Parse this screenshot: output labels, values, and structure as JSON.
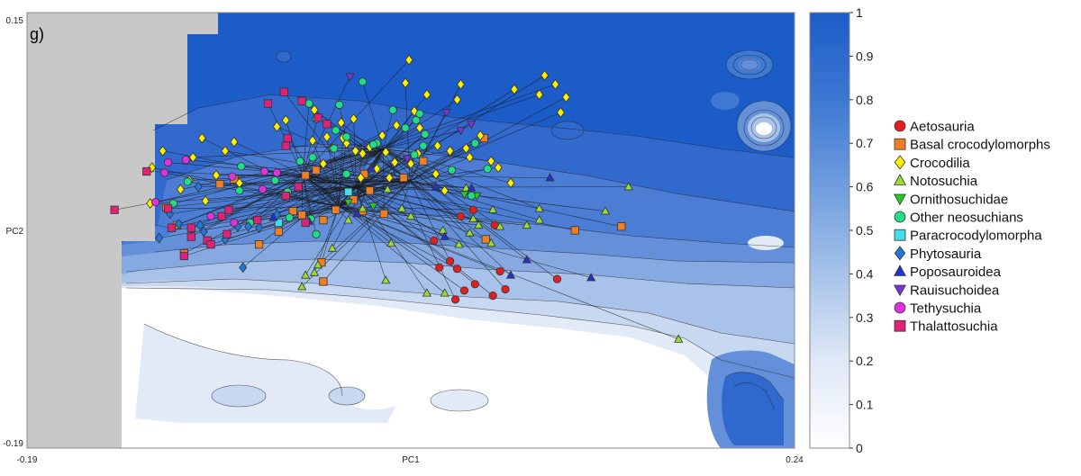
{
  "chart_data": {
    "type": "scatter",
    "panel_label": "g)",
    "xlabel": "PC1",
    "ylabel": "PC2",
    "xlim": [
      -0.19,
      0.24
    ],
    "ylim": [
      -0.19,
      0.15
    ],
    "x_tick_labels": [
      "-0.19",
      "PC1",
      "0.24"
    ],
    "y_tick_labels": [
      "0.15",
      "PC2",
      "-0.19"
    ],
    "colorbar": {
      "range": [
        0,
        1
      ],
      "ticks": [
        "0",
        "0.1",
        "0.2",
        "0.3",
        "0.4",
        "0.5",
        "0.6",
        "0.7",
        "0.8",
        "0.9",
        "1"
      ],
      "color_low": "#ffffff",
      "color_high": "#1c5cc8"
    },
    "background": {
      "masked_region_color": "#c8c8c8",
      "high_region_color": "#1c5cc8"
    },
    "legend_position": "right",
    "series": [
      {
        "name": "Aetosauria",
        "marker": "circle",
        "color": "#e02020",
        "points": [
          [
            0.061,
            -0.062
          ],
          [
            0.041,
            -0.049
          ],
          [
            0.047,
            -0.044
          ],
          [
            0.051,
            -0.05
          ],
          [
            0.05,
            -0.074
          ],
          [
            0.071,
            -0.071
          ],
          [
            0.055,
            -0.067
          ],
          [
            0.078,
            -0.066
          ],
          [
            0.075,
            -0.052
          ],
          [
            0.107,
            -0.058
          ],
          [
            0.038,
            -0.028
          ],
          [
            0.072,
            -0.016
          ],
          [
            0.053,
            -0.009
          ],
          [
            0.06,
            -0.004
          ]
        ]
      },
      {
        "name": "Basal crocodylomorphs",
        "marker": "square",
        "color": "#ee7f25",
        "points": [
          [
            -0.102,
            -0.038
          ],
          [
            -0.112,
            -0.002
          ],
          [
            -0.106,
            -0.016
          ],
          [
            -0.082,
            0.016
          ],
          [
            -0.074,
            0.02
          ],
          [
            -0.06,
            -0.031
          ],
          [
            -0.049,
            -0.021
          ],
          [
            -0.036,
            -0.008
          ],
          [
            -0.024,
            -0.012
          ],
          [
            -0.034,
            0.023
          ],
          [
            -0.028,
            0.027
          ],
          [
            -0.01,
            0.01
          ],
          [
            -0.017,
            -0.004
          ],
          [
            -0.002,
            -0.005
          ],
          [
            -0.001,
            0.024
          ],
          [
            0.01,
            -0.007
          ],
          [
            0.021,
            0.021
          ],
          [
            0.002,
            0.011
          ],
          [
            -0.024,
            -0.06
          ],
          [
            -0.025,
            -0.045
          ],
          [
            -0.041,
            -0.005
          ],
          [
            0.067,
            -0.027
          ],
          [
            0.117,
            -0.02
          ],
          [
            0.143,
            -0.017
          ],
          [
            0.066,
            0.052
          ],
          [
            -0.007,
            0.004
          ],
          [
            0.032,
            0.034
          ]
        ]
      },
      {
        "name": "Crocodilia",
        "marker": "diamond",
        "color": "#fff200",
        "points": [
          [
            0.024,
            0.113
          ],
          [
            0.053,
            0.094
          ],
          [
            0.1,
            0.101
          ],
          [
            0.097,
            0.086
          ],
          [
            0.083,
            0.09
          ],
          [
            0.106,
            0.094
          ],
          [
            0.112,
            0.084
          ],
          [
            0.109,
            0.072
          ],
          [
            0.051,
            0.082
          ],
          [
            0.027,
            0.073
          ],
          [
            0.017,
            0.062
          ],
          [
            0.022,
            0.095
          ],
          [
            0.034,
            0.086
          ],
          [
            0.03,
            0.06
          ],
          [
            -0.007,
            0.067
          ],
          [
            -0.045,
            0.066
          ],
          [
            -0.05,
            0.061
          ],
          [
            -0.03,
            0.05
          ],
          [
            -0.019,
            0.044
          ],
          [
            -0.024,
            0.032
          ],
          [
            -0.074,
            0.049
          ],
          [
            -0.079,
            0.042
          ],
          [
            -0.092,
            0.052
          ],
          [
            -0.097,
            0.037
          ],
          [
            -0.114,
            0.042
          ],
          [
            -0.099,
            0.019
          ],
          [
            -0.09,
            0.003
          ],
          [
            -0.12,
            0.029
          ],
          [
            -0.104,
            0.012
          ],
          [
            -0.121,
            0.001
          ],
          [
            -0.084,
            0.023
          ],
          [
            -0.071,
            0.017
          ],
          [
            -0.022,
            0.053
          ],
          [
            -0.011,
            0.048
          ],
          [
            -0.002,
            0.04
          ],
          [
            0.009,
            0.054
          ],
          [
            0.006,
            0.028
          ],
          [
            0.013,
            0.021
          ],
          [
            0.029,
            0.04
          ],
          [
            0.04,
            0.046
          ],
          [
            0.047,
            0.042
          ],
          [
            0.064,
            0.054
          ],
          [
            0.056,
            0.044
          ],
          [
            0.039,
            0.024
          ],
          [
            0.016,
            0.033
          ],
          [
            -0.006,
            0.042
          ],
          [
            -0.014,
            0.064
          ],
          [
            0.025,
            0.032
          ],
          [
            -0.003,
            0.021
          ],
          [
            0.044,
            0.011
          ],
          [
            0.002,
            0.045
          ],
          [
            0.058,
            0.037
          ],
          [
            0.033,
            0.055
          ],
          [
            0.07,
            0.034
          ],
          [
            0.074,
            0.029
          ],
          [
            0.011,
            0.041
          ],
          [
            -0.029,
            0.074
          ],
          [
            -0.013,
            0.052
          ],
          [
            0.081,
            0.017
          ]
        ]
      },
      {
        "name": "Notosuchia",
        "marker": "triangle",
        "color": "#99dd33",
        "points": [
          [
            0.147,
            0.014
          ],
          [
            0.134,
            -0.005
          ],
          [
            0.097,
            -0.012
          ],
          [
            0.063,
            -0.016
          ],
          [
            0.058,
            -0.022
          ],
          [
            0.052,
            -0.031
          ],
          [
            0.06,
            -0.011
          ],
          [
            0.07,
            -0.03
          ],
          [
            0.043,
            -0.02
          ],
          [
            0.075,
            -0.017
          ],
          [
            0.071,
            -0.004
          ],
          [
            0.012,
            0.012
          ],
          [
            0.02,
            -0.003
          ],
          [
            0.025,
            -0.009
          ],
          [
            -0.019,
            -0.034
          ],
          [
            -0.002,
            -0.003
          ],
          [
            -0.01,
            -0.012
          ],
          [
            -0.027,
            -0.047
          ],
          [
            -0.029,
            -0.053
          ],
          [
            -0.034,
            -0.055
          ],
          [
            0.011,
            -0.059
          ],
          [
            0.014,
            -0.03
          ],
          [
            -0.036,
            -0.064
          ],
          [
            0.09,
            -0.016
          ],
          [
            0.097,
            -0.003
          ],
          [
            0.034,
            -0.069
          ],
          [
            0.044,
            -0.069
          ],
          [
            0.056,
            0.013
          ],
          [
            0.175,
            -0.105
          ]
        ]
      },
      {
        "name": "Ornithosuchidae",
        "marker": "triangle-down",
        "color": "#22cc22",
        "points": [
          [
            0.055,
            0.008
          ],
          [
            -0.01,
            0.002
          ],
          [
            0.004,
            -0.001
          ],
          [
            0.062,
            0.007
          ]
        ]
      },
      {
        "name": "Other neosuchians",
        "marker": "circle",
        "color": "#22dd88",
        "points": [
          [
            -0.1,
            0.018
          ],
          [
            -0.108,
            0.001
          ],
          [
            -0.071,
            0.011
          ],
          [
            -0.07,
            0.03
          ],
          [
            -0.044,
            0.01
          ],
          [
            -0.037,
            0.034
          ],
          [
            -0.065,
            -0.014
          ],
          [
            -0.043,
            -0.01
          ],
          [
            -0.028,
            -0.023
          ],
          [
            -0.011,
            0.024
          ],
          [
            -0.018,
            0.044
          ],
          [
            -0.028,
            0.067
          ],
          [
            -0.015,
            0.078
          ],
          [
            -0.032,
            0.079
          ],
          [
            -0.051,
            0.019
          ],
          [
            0.022,
            0.06
          ],
          [
            0.028,
            0.066
          ],
          [
            0.033,
            0.055
          ],
          [
            0.006,
            0.048
          ],
          [
            0.027,
            0.039
          ],
          [
            0.048,
            0.027
          ],
          [
            0.059,
            0.007
          ],
          [
            0.032,
            0.046
          ],
          [
            -0.031,
            -0.011
          ],
          [
            0.061,
            0.048
          ],
          [
            0.068,
            0.028
          ],
          [
            0.015,
            0.074
          ],
          [
            0.03,
            0.071
          ],
          [
            -0.03,
            0.037
          ],
          [
            -0.017,
            0.058
          ],
          [
            -0.011,
            0.053
          ],
          [
            -0.002,
            0.096
          ],
          [
            0.004,
            0.047
          ]
        ]
      },
      {
        "name": "Paracrocodylomorpha",
        "marker": "square",
        "color": "#44ddee",
        "points": [
          [
            -0.01,
            0.01
          ],
          [
            -0.049,
            -0.014
          ]
        ]
      },
      {
        "name": "Phytosauria",
        "marker": "diamond",
        "color": "#2277dd",
        "points": [
          [
            -0.116,
            -0.026
          ],
          [
            -0.105,
            -0.015
          ],
          [
            -0.11,
            -0.007
          ],
          [
            -0.091,
            -0.021
          ],
          [
            -0.093,
            -0.016
          ],
          [
            -0.079,
            -0.027
          ],
          [
            -0.069,
            -0.049
          ],
          [
            -0.072,
            -0.017
          ],
          [
            -0.066,
            -0.017
          ],
          [
            -0.094,
            0.014
          ],
          [
            -0.06,
            -0.018
          ],
          [
            -0.05,
            -0.008
          ]
        ]
      },
      {
        "name": "Poposauroidea",
        "marker": "triangle",
        "color": "#2233cc",
        "points": [
          [
            0.003,
            0.028
          ],
          [
            0.059,
            0.013
          ],
          [
            0.081,
            -0.055
          ],
          [
            0.126,
            -0.057
          ],
          [
            0.09,
            -0.043
          ],
          [
            0.044,
            -0.025
          ],
          [
            0.103,
            0.021
          ],
          [
            0.039,
            0.014
          ],
          [
            -0.052,
            -0.01
          ],
          [
            -0.005,
            -0.007
          ],
          [
            -0.032,
            -0.013
          ]
        ]
      },
      {
        "name": "Rauisuchoidea",
        "marker": "triangle-down",
        "color": "#7733dd",
        "points": [
          [
            -0.009,
            0.1
          ],
          [
            0.045,
            0.072
          ],
          [
            0.023,
            0.036
          ],
          [
            0.053,
            0.058
          ],
          [
            0.059,
            0.063
          ]
        ]
      },
      {
        "name": "Tethysuchia",
        "marker": "circle",
        "color": "#dd33dd",
        "points": [
          [
            -0.111,
            0.033
          ],
          [
            -0.101,
            0.035
          ],
          [
            -0.113,
            0.025
          ],
          [
            -0.118,
            0.002
          ],
          [
            -0.087,
            -0.009
          ],
          [
            -0.075,
            0.022
          ],
          [
            -0.074,
            -0.014
          ],
          [
            -0.058,
            0.012
          ],
          [
            -0.05,
            0.025
          ],
          [
            -0.057,
            0.026
          ]
        ]
      },
      {
        "name": "Thalattosuchia",
        "marker": "square",
        "color": "#dd2277",
        "points": [
          [
            -0.141,
            -0.004
          ],
          [
            -0.123,
            0.026
          ],
          [
            -0.111,
            -0.003
          ],
          [
            -0.098,
            -0.018
          ],
          [
            -0.109,
            -0.018
          ],
          [
            -0.098,
            -0.025
          ],
          [
            -0.089,
            -0.028
          ],
          [
            -0.102,
            -0.04
          ],
          [
            -0.081,
            -0.009
          ],
          [
            -0.077,
            -0.004
          ],
          [
            -0.078,
            -0.023
          ],
          [
            -0.087,
            -0.031
          ],
          [
            -0.061,
            -0.012
          ],
          [
            -0.045,
            0.007
          ],
          [
            -0.038,
            0.014
          ],
          [
            -0.027,
            0.068
          ],
          [
            -0.036,
            0.081
          ],
          [
            -0.044,
            0.052
          ],
          [
            -0.045,
            0.046
          ],
          [
            -0.046,
            0.088
          ],
          [
            -0.055,
            0.079
          ],
          [
            -0.022,
            0.063
          ],
          [
            -0.034,
            -0.014
          ]
        ]
      }
    ]
  }
}
